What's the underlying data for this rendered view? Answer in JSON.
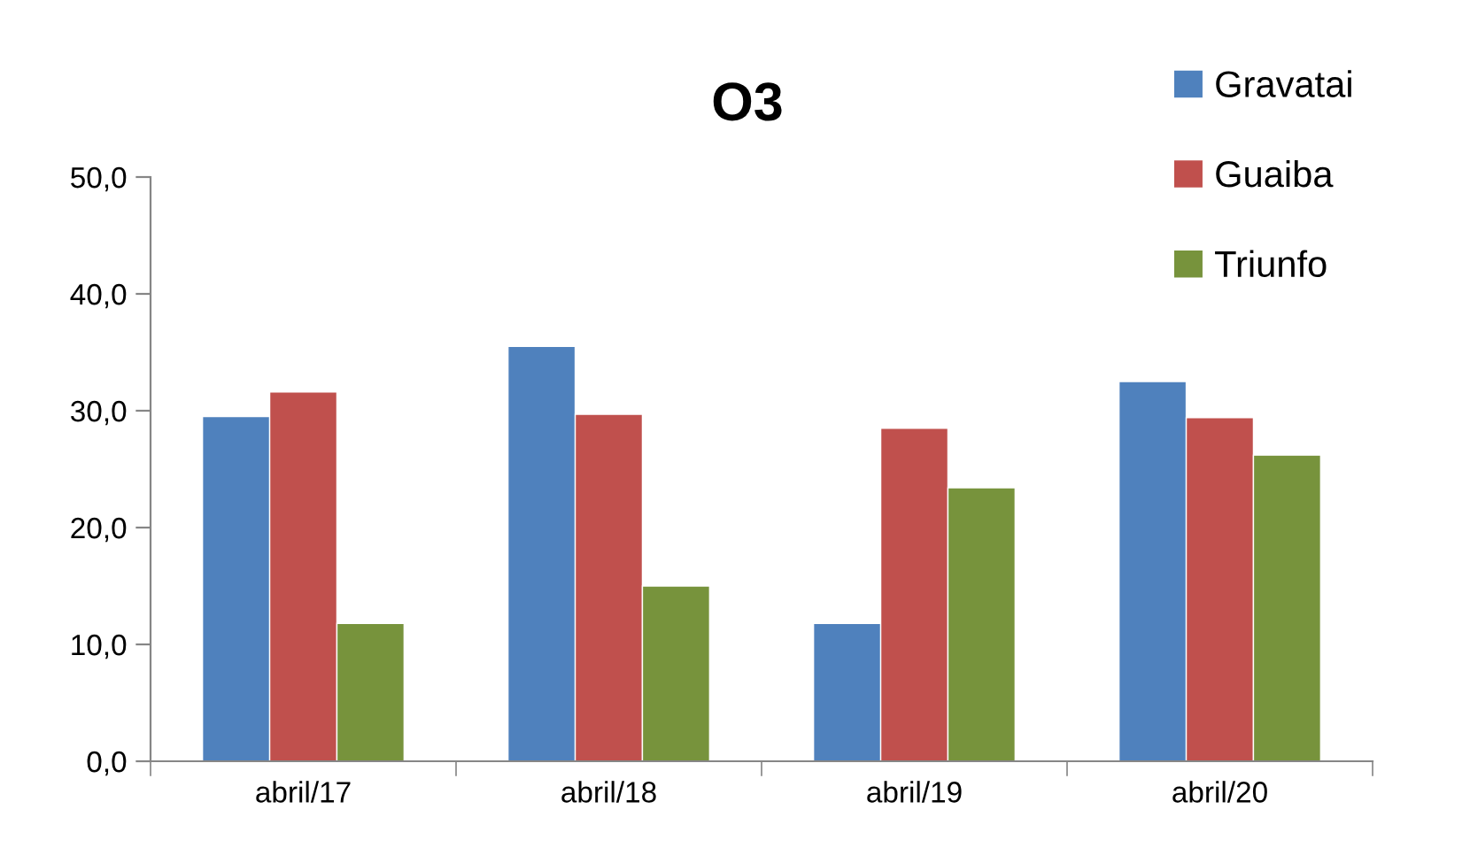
{
  "chart_data": {
    "type": "bar",
    "title": "O3",
    "categories": [
      "abril/17",
      "abril/18",
      "abril/19",
      "abril/20"
    ],
    "series": [
      {
        "name": "Gravatai",
        "color": "#4f81bd",
        "values": [
          29.5,
          35.5,
          11.8,
          32.5
        ]
      },
      {
        "name": "Guaiba",
        "color": "#c0504d",
        "values": [
          31.6,
          29.7,
          28.5,
          29.4
        ]
      },
      {
        "name": "Triunfo",
        "color": "#77933c",
        "values": [
          11.8,
          15.0,
          23.4,
          26.2
        ]
      }
    ],
    "ylim": [
      0,
      50
    ],
    "yticks": [
      {
        "value": 0,
        "label": "0,0"
      },
      {
        "value": 10,
        "label": "10,0"
      },
      {
        "value": 20,
        "label": "20,0"
      },
      {
        "value": 30,
        "label": "30,0"
      },
      {
        "value": 40,
        "label": "40,0"
      },
      {
        "value": 50,
        "label": "50,0"
      }
    ],
    "grid": false,
    "legend": "top right"
  }
}
